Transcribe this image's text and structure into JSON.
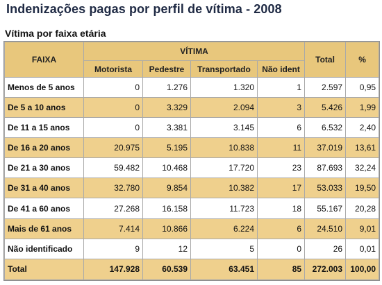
{
  "title": "Indenizações pagas por perfil de vítima - 2008",
  "section": "Vítima por faixa etária",
  "header": {
    "faixa": "FAIXA",
    "vitima": "VÍTIMA",
    "total": "Total",
    "percent": "%",
    "sub": [
      "Motorista",
      "Pedestre",
      "Transportado",
      "Não ident"
    ]
  },
  "rows": [
    {
      "label": "Menos de 5 anos",
      "values": [
        "0",
        "1.276",
        "1.320",
        "1",
        "2.597",
        "0,95"
      ]
    },
    {
      "label": "De 5 a 10 anos",
      "values": [
        "0",
        "3.329",
        "2.094",
        "3",
        "5.426",
        "1,99"
      ]
    },
    {
      "label": "De 11 a 15 anos",
      "values": [
        "0",
        "3.381",
        "3.145",
        "6",
        "6.532",
        "2,40"
      ]
    },
    {
      "label": "De 16 a 20 anos",
      "values": [
        "20.975",
        "5.195",
        "10.838",
        "11",
        "37.019",
        "13,61"
      ]
    },
    {
      "label": "De 21 a 30 anos",
      "values": [
        "59.482",
        "10.468",
        "17.720",
        "23",
        "87.693",
        "32,24"
      ]
    },
    {
      "label": "De 31 a 40 anos",
      "values": [
        "32.780",
        "9.854",
        "10.382",
        "17",
        "53.033",
        "19,50"
      ]
    },
    {
      "label": "De 41 a 60 anos",
      "values": [
        "27.268",
        "16.158",
        "11.723",
        "18",
        "55.167",
        "20,28"
      ]
    },
    {
      "label": "Mais de 61 anos",
      "values": [
        "7.414",
        "10.866",
        "6.224",
        "6",
        "24.510",
        "9,01"
      ]
    },
    {
      "label": "Não identificado",
      "values": [
        "9",
        "12",
        "5",
        "0",
        "26",
        "0,01"
      ]
    }
  ],
  "total_row": {
    "label": "Total",
    "values": [
      "147.928",
      "60.539",
      "63.451",
      "85",
      "272.003",
      "100,00"
    ]
  },
  "colors": {
    "header_bg": "#e8c77c",
    "stripe_bg": "#efd08d",
    "title_color": "#1f2a44"
  }
}
